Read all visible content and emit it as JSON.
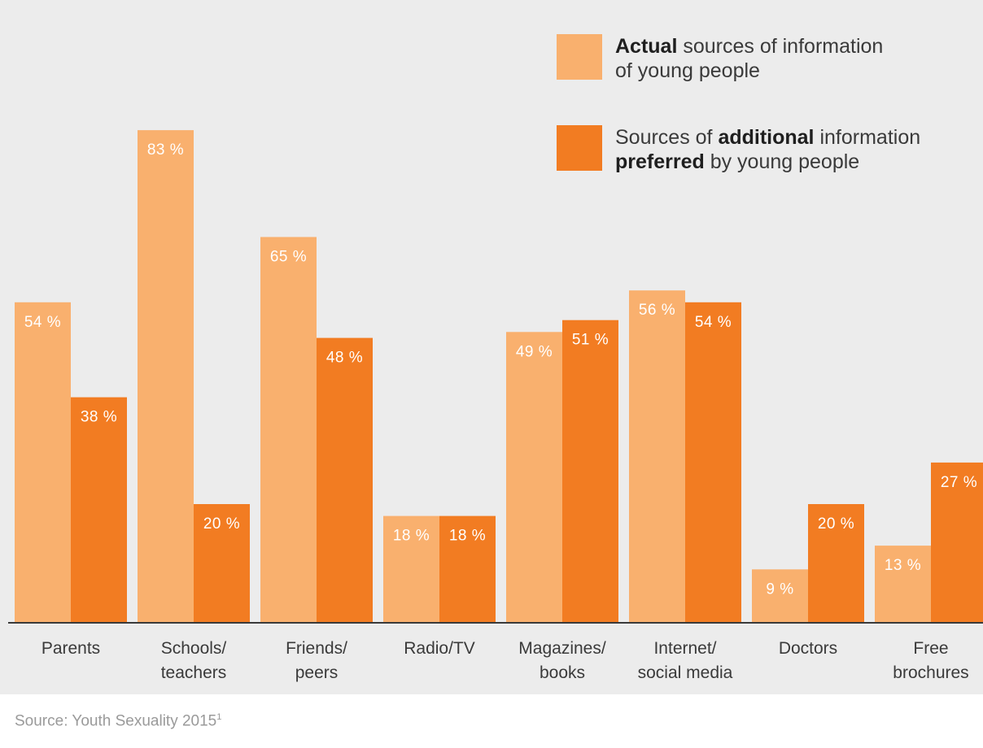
{
  "chart_data": {
    "type": "bar",
    "categories": [
      [
        "Parents"
      ],
      [
        "Schools/",
        "teachers"
      ],
      [
        "Friends/",
        "peers"
      ],
      [
        "Radio/TV"
      ],
      [
        "Magazines/",
        "books"
      ],
      [
        "Internet/",
        "social media"
      ],
      [
        "Doctors"
      ],
      [
        "Free",
        "brochures"
      ]
    ],
    "series": [
      {
        "key": "actual",
        "color": "#f9b06e",
        "values": [
          54,
          83,
          65,
          18,
          49,
          56,
          9,
          13
        ],
        "labels": [
          "54 %",
          "83 %",
          "65 %",
          "18 %",
          "49 %",
          "56 %",
          "9 %",
          "13 %"
        ]
      },
      {
        "key": "preferred",
        "color": "#f27c22",
        "values": [
          38,
          20,
          48,
          18,
          51,
          54,
          20,
          27
        ],
        "labels": [
          "38 %",
          "20 %",
          "48 %",
          "18 %",
          "51 %",
          "54 %",
          "20 %",
          "27 %"
        ]
      }
    ],
    "ylim": [
      0,
      100
    ],
    "grid": false,
    "legend_position": "top-right"
  },
  "legend": {
    "actual": {
      "bold": "Actual",
      "rest": " sources of information",
      "line2": "of young people"
    },
    "preferred": {
      "pre": "Sources of ",
      "bold1": "additional",
      "post1": " information",
      "bold2": "preferred",
      "post2": " by young people"
    }
  },
  "source": {
    "text": "Source: Youth Sexuality 2015",
    "footnote": "1"
  }
}
